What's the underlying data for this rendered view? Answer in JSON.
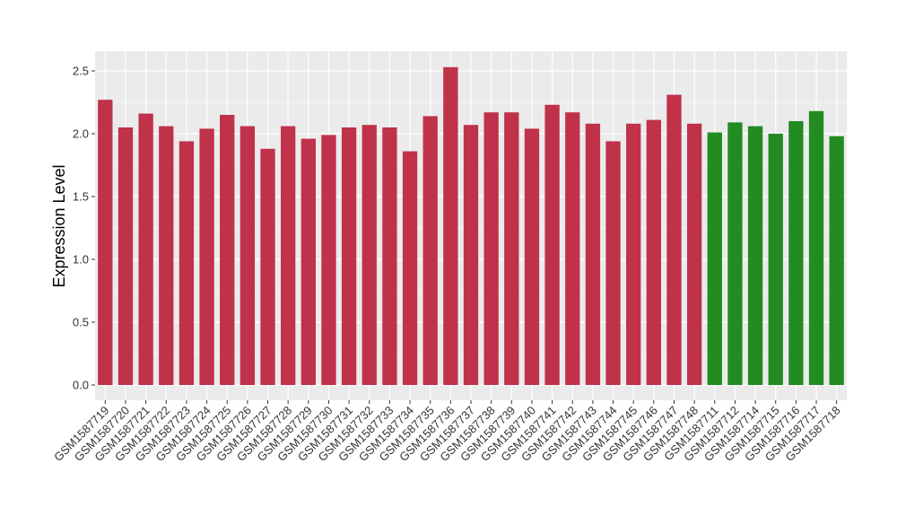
{
  "chart_data": {
    "type": "bar",
    "title": "",
    "xlabel": "",
    "ylabel": "Expression Level",
    "ylim": [
      0,
      2.6
    ],
    "yticks": [
      0.0,
      0.5,
      1.0,
      1.5,
      2.0,
      2.5
    ],
    "ytick_labels": [
      "0.0",
      "0.5",
      "1.0",
      "1.5",
      "2.0",
      "2.5"
    ],
    "grid": true,
    "legend": "none",
    "colors": {
      "group_a": "#c0314a",
      "group_b": "#228b22",
      "panel": "#ebebeb",
      "gridline": "#ffffff"
    },
    "categories": [
      "GSM1587719",
      "GSM1587720",
      "GSM1587721",
      "GSM1587722",
      "GSM1587723",
      "GSM1587724",
      "GSM1587725",
      "GSM1587726",
      "GSM1587727",
      "GSM1587728",
      "GSM1587729",
      "GSM1587730",
      "GSM1587731",
      "GSM1587732",
      "GSM1587733",
      "GSM1587734",
      "GSM1587735",
      "GSM1587736",
      "GSM1587737",
      "GSM1587738",
      "GSM1587739",
      "GSM1587740",
      "GSM1587741",
      "GSM1587742",
      "GSM1587743",
      "GSM1587744",
      "GSM1587745",
      "GSM1587746",
      "GSM1587747",
      "GSM1587748",
      "GSM1587711",
      "GSM1587712",
      "GSM1587714",
      "GSM1587715",
      "GSM1587716",
      "GSM1587717",
      "GSM1587718"
    ],
    "values": [
      2.27,
      2.05,
      2.16,
      2.06,
      1.94,
      2.04,
      2.15,
      2.06,
      1.88,
      2.06,
      1.96,
      1.99,
      2.05,
      2.07,
      2.05,
      1.86,
      2.14,
      2.53,
      2.07,
      2.17,
      2.17,
      2.04,
      2.23,
      2.17,
      2.08,
      1.94,
      2.08,
      2.11,
      2.31,
      2.08,
      2.01,
      2.09,
      2.06,
      2.0,
      2.1,
      2.18,
      1.98
    ],
    "groups": [
      "a",
      "a",
      "a",
      "a",
      "a",
      "a",
      "a",
      "a",
      "a",
      "a",
      "a",
      "a",
      "a",
      "a",
      "a",
      "a",
      "a",
      "a",
      "a",
      "a",
      "a",
      "a",
      "a",
      "a",
      "a",
      "a",
      "a",
      "a",
      "a",
      "a",
      "b",
      "b",
      "b",
      "b",
      "b",
      "b",
      "b"
    ]
  }
}
